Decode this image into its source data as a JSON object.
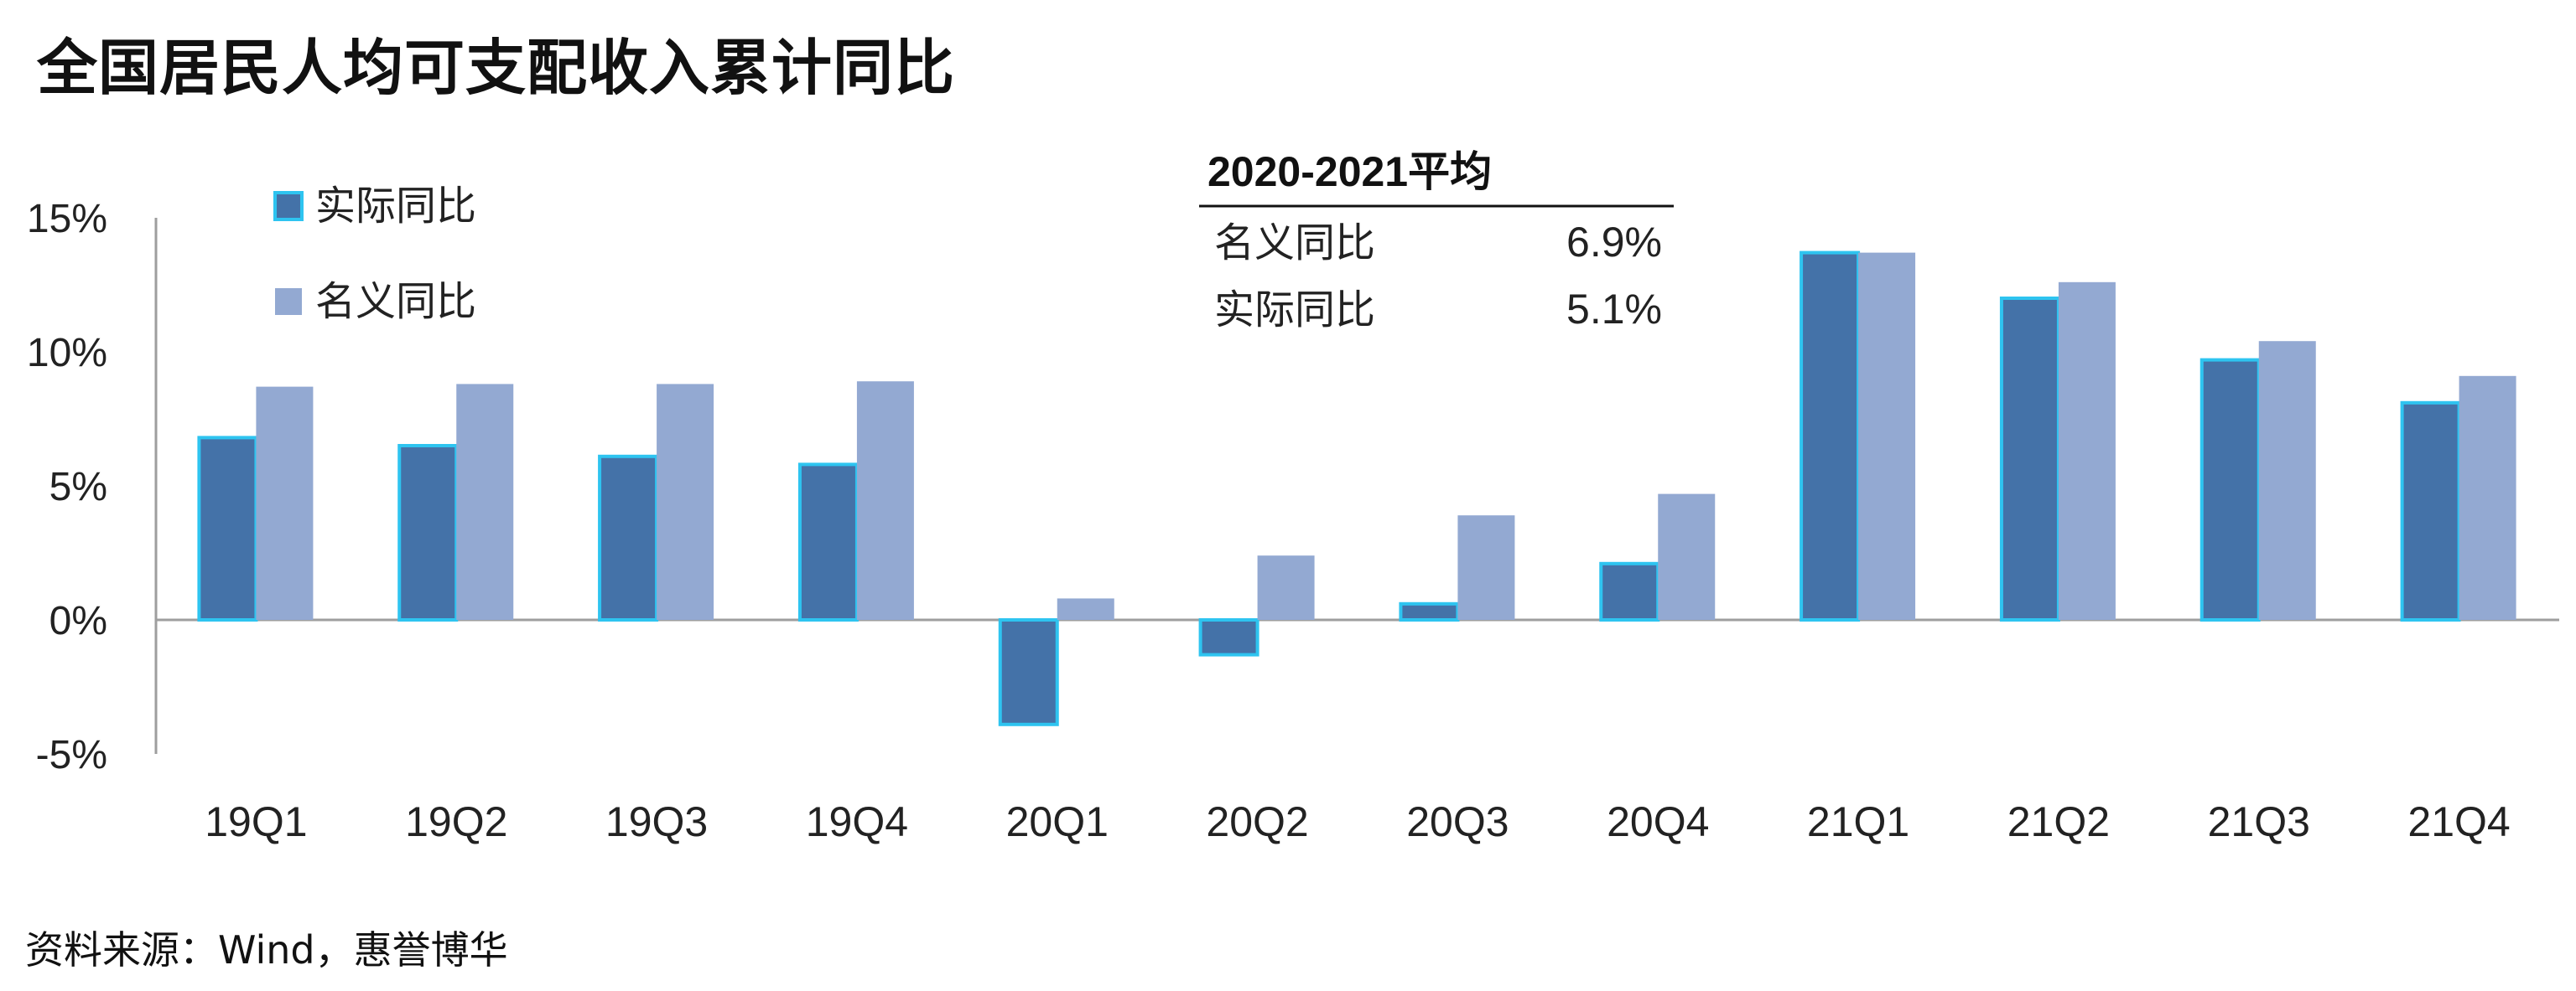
{
  "title": "全国居民人均可支配收入累计同比",
  "source": "资料来源：Wind，惠誉博华",
  "colors": {
    "real": "#4472A8",
    "real_border": "#2EC4F0",
    "nominal": "#93A9D2",
    "axis": "#9E9E9E"
  },
  "summary_table": {
    "title": "2020-2021平均",
    "rows": [
      {
        "label": "名义同比",
        "value": "6.9%"
      },
      {
        "label": "实际同比",
        "value": "5.1%"
      }
    ]
  },
  "chart_data": {
    "type": "bar",
    "categories": [
      "19Q1",
      "19Q2",
      "19Q3",
      "19Q4",
      "20Q1",
      "20Q2",
      "20Q3",
      "20Q4",
      "21Q1",
      "21Q2",
      "21Q3",
      "21Q4"
    ],
    "series": [
      {
        "name": "实际同比",
        "values": [
          6.8,
          6.5,
          6.1,
          5.8,
          -3.9,
          -1.3,
          0.6,
          2.1,
          13.7,
          12.0,
          9.7,
          8.1
        ]
      },
      {
        "name": "名义同比",
        "values": [
          8.7,
          8.8,
          8.8,
          8.9,
          0.8,
          2.4,
          3.9,
          4.7,
          13.7,
          12.6,
          10.4,
          9.1
        ]
      }
    ],
    "y_ticks": [
      "15%",
      "10%",
      "5%",
      "0%",
      "-5%"
    ],
    "y_tick_values": [
      15,
      10,
      5,
      0,
      -5
    ],
    "ylim": [
      -5,
      15
    ],
    "grid": false,
    "legend_position": "top-left"
  }
}
